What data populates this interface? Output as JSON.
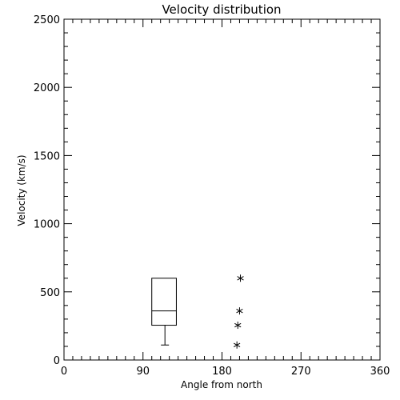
{
  "colors": {
    "background": "#ffffff",
    "foreground": "#000000"
  },
  "chart_data": {
    "type": "box",
    "title": "Velocity distribution",
    "xlabel": "Angle from north",
    "ylabel": "Velocity (km/s)",
    "xlim": [
      0,
      360
    ],
    "ylim": [
      0,
      2500
    ],
    "xticks": [
      0,
      90,
      180,
      270,
      360
    ],
    "yticks": [
      0,
      500,
      1000,
      1500,
      2000,
      2500
    ],
    "x_tick_labels": [
      "0",
      "90",
      "180",
      "270",
      "360"
    ],
    "y_tick_labels": [
      "0",
      "500",
      "1000",
      "1500",
      "2000",
      "2500"
    ],
    "x_minor_step": 10,
    "y_minor_step": 100,
    "grid": false,
    "box": {
      "x_left": 100,
      "x_right": 128,
      "q1": 255,
      "median": 360,
      "q3": 600,
      "whisker_low": 110,
      "whisker_x": 115
    },
    "outliers": [
      {
        "x": 197,
        "y": 110
      },
      {
        "x": 198,
        "y": 255
      },
      {
        "x": 200,
        "y": 360
      },
      {
        "x": 201,
        "y": 600
      }
    ]
  }
}
